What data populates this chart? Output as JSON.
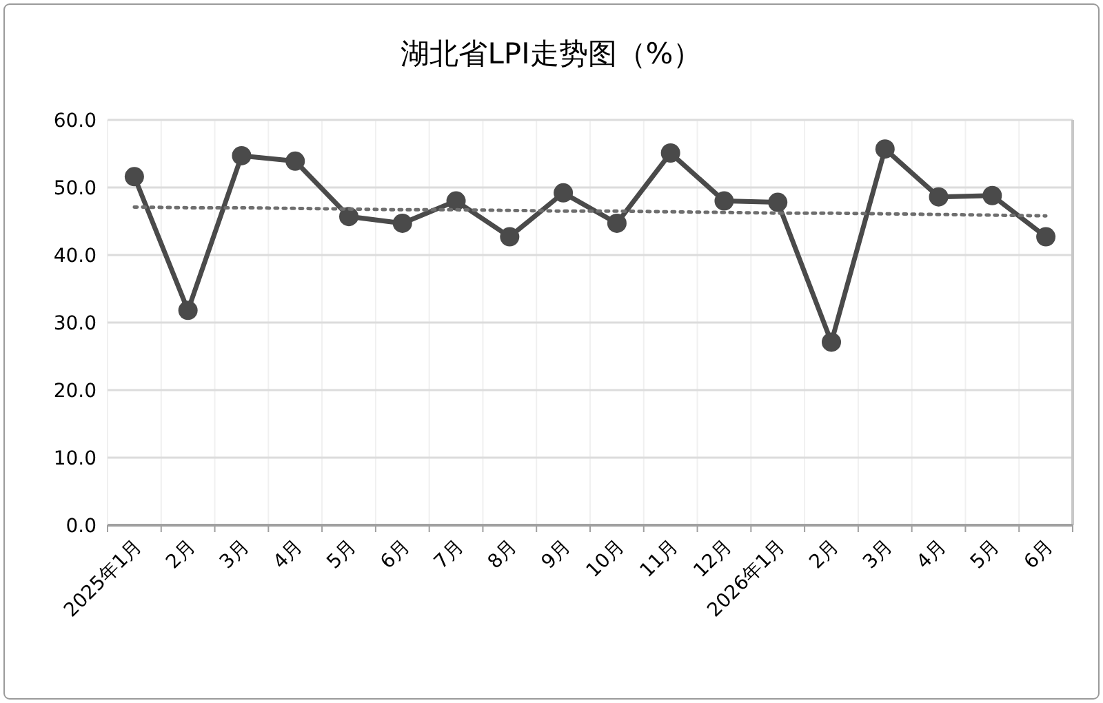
{
  "chart_data": {
    "type": "line",
    "title": "湖北省LPI走势图（%）",
    "categories": [
      "2025年1月",
      "2月",
      "3月",
      "4月",
      "5月",
      "6月",
      "7月",
      "8月",
      "9月",
      "10月",
      "11月",
      "12月",
      "2026年1月",
      "2月",
      "3月",
      "4月",
      "5月",
      "6月"
    ],
    "series": [
      {
        "color": "#4a4a4a",
        "values": [
          51.6,
          31.8,
          54.7,
          53.9,
          45.7,
          44.7,
          48.0,
          42.7,
          49.2,
          44.7,
          55.1,
          48.0,
          47.8,
          27.1,
          55.7,
          48.6,
          48.8,
          42.7
        ],
        "marker": "circle",
        "line_style": "solid"
      },
      {
        "type": "line",
        "color": "#6e6e6e",
        "values": [
          47.1,
          47.0,
          47.0,
          46.9,
          46.8,
          46.7,
          46.7,
          46.6,
          46.5,
          46.5,
          46.4,
          46.3,
          46.2,
          46.2,
          46.1,
          46.0,
          45.9,
          45.8
        ],
        "marker": "none",
        "line_style": "dotted"
      }
    ],
    "ylim": [
      0,
      60
    ],
    "yticks": [
      {
        "value": 0,
        "label": "0.0"
      },
      {
        "value": 10,
        "label": "10.0"
      },
      {
        "value": 20,
        "label": "20.0"
      },
      {
        "value": 30,
        "label": "30.0"
      },
      {
        "value": 40,
        "label": "40.0"
      },
      {
        "value": 50,
        "label": "50.0"
      },
      {
        "value": 60,
        "label": "60.0"
      }
    ],
    "grid": true
  }
}
